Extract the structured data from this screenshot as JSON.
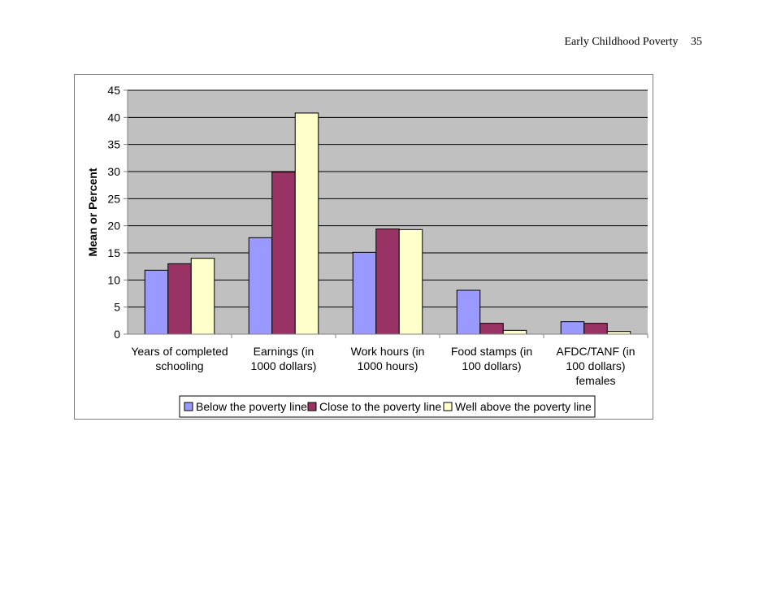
{
  "header": {
    "running_title": "Early Childhood Poverty",
    "page_number": "35"
  },
  "colors": {
    "plot_background": "#c0c0c0",
    "gridline": "#000000",
    "axis": "#808080"
  },
  "chart_data": {
    "type": "bar",
    "title": "",
    "xlabel": "",
    "ylabel": "Mean or Percent",
    "ylim": [
      0,
      45
    ],
    "yticks": [
      0,
      5,
      10,
      15,
      20,
      25,
      30,
      35,
      40,
      45
    ],
    "grid": true,
    "legend_position": "bottom",
    "categories": [
      [
        "Years of completed",
        "schooling"
      ],
      [
        "Earnings    (in",
        "1000 dollars)"
      ],
      [
        "Work hours (in",
        "1000 hours)"
      ],
      [
        "Food stamps  (in",
        "100 dollars)"
      ],
      [
        "AFDC/TANF (in",
        "100 dollars)",
        "females"
      ]
    ],
    "series": [
      {
        "name": "Below the poverty line",
        "color": "#9999ff",
        "values": [
          11.8,
          17.8,
          15.1,
          8.1,
          2.3
        ]
      },
      {
        "name": "Close to the poverty line",
        "color": "#993366",
        "values": [
          13.0,
          29.9,
          19.4,
          2.0,
          2.0
        ]
      },
      {
        "name": "Well above the poverty line",
        "color": "#ffffcc",
        "values": [
          14.0,
          40.8,
          19.3,
          0.7,
          0.5
        ]
      }
    ]
  }
}
